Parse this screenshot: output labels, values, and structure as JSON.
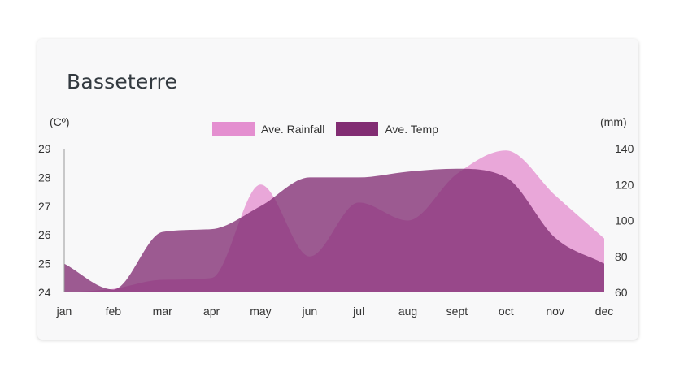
{
  "chart_data": {
    "type": "area",
    "title": "Basseterre",
    "y_left_label": "(Cº)",
    "y_right_label": "(mm)",
    "categories": [
      "jan",
      "feb",
      "mar",
      "apr",
      "may",
      "jun",
      "jul",
      "aug",
      "sept",
      "oct",
      "nov",
      "dec"
    ],
    "y_left_ticks": [
      29,
      28,
      27,
      26,
      25,
      24
    ],
    "y_left_range": [
      24,
      29
    ],
    "y_right_ticks": [
      140,
      120,
      100,
      80,
      60
    ],
    "y_right_range": [
      60,
      140
    ],
    "legend_position": "top-center",
    "grid": false,
    "series": [
      {
        "name": "Ave. Rainfall",
        "axis": "right",
        "color": "#e48fd0",
        "values": [
          60,
          62,
          67,
          68,
          120,
          80,
          110,
          100,
          126,
          139,
          114,
          90
        ]
      },
      {
        "name": "Ave. Temp",
        "axis": "left",
        "color": "#822d73",
        "values": [
          25,
          24.1,
          26.1,
          26.2,
          27,
          28,
          28,
          28.2,
          28.3,
          28,
          25.9,
          25
        ]
      }
    ]
  }
}
